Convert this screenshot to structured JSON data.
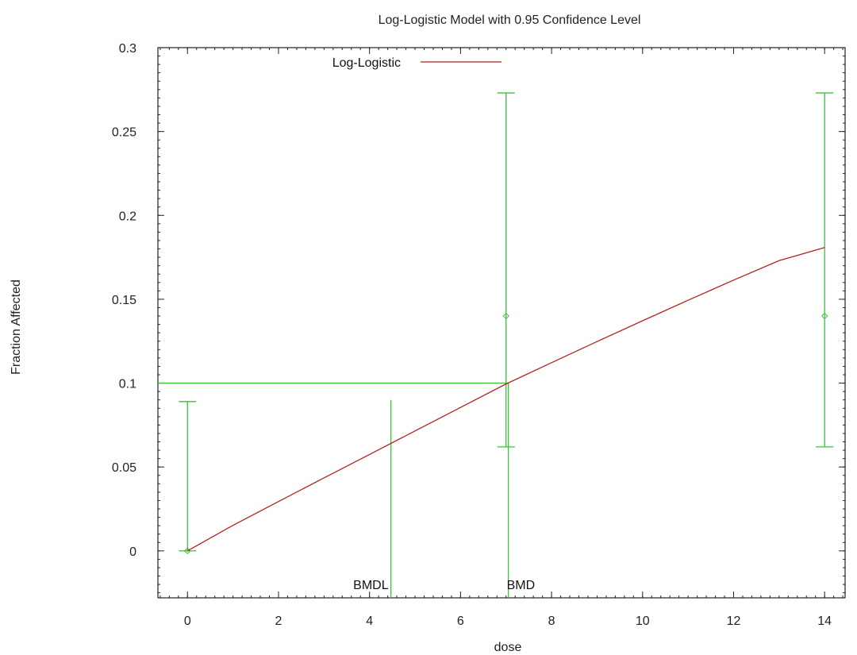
{
  "chart_data": {
    "type": "line",
    "title": "Log-Logistic Model with 0.95 Confidence Level",
    "xlabel": "dose",
    "ylabel": "Fraction Affected",
    "xlim": [
      -0.65,
      14.45
    ],
    "ylim": [
      -0.028,
      0.3
    ],
    "x_ticks": [
      0,
      2,
      4,
      6,
      8,
      10,
      12,
      14
    ],
    "y_ticks": [
      0,
      0.05,
      0.1,
      0.15,
      0.2,
      0.25,
      0.3
    ],
    "y_tick_labels": [
      "0",
      "0.05",
      "0.1",
      "0.15",
      "0.2",
      "0.25",
      "0.3"
    ],
    "grid": false,
    "legend_position": "top-center",
    "series": [
      {
        "name": "Log-Logistic",
        "color": "#b22222",
        "x": [
          0,
          1,
          2,
          3,
          4,
          5,
          6,
          7,
          8,
          9,
          10,
          11,
          12,
          13,
          14
        ],
        "y": [
          0,
          0.0152,
          0.0294,
          0.0435,
          0.0575,
          0.0715,
          0.0855,
          0.0995,
          0.1122,
          0.1248,
          0.1372,
          0.1494,
          0.1614,
          0.173,
          0.1808
        ]
      }
    ],
    "observed": {
      "color": "#3cbf3c",
      "points": [
        {
          "x": 0,
          "y": 0,
          "lower": 0,
          "upper": 0.089
        },
        {
          "x": 7,
          "y": 0.14,
          "lower": 0.062,
          "upper": 0.273
        },
        {
          "x": 14,
          "y": 0.14,
          "lower": 0.062,
          "upper": 0.273
        }
      ]
    },
    "bmr_level": 0.1,
    "bmd": 7.05,
    "bmdl": 4.47,
    "annotations": [
      "BMDL",
      "BMD"
    ]
  }
}
